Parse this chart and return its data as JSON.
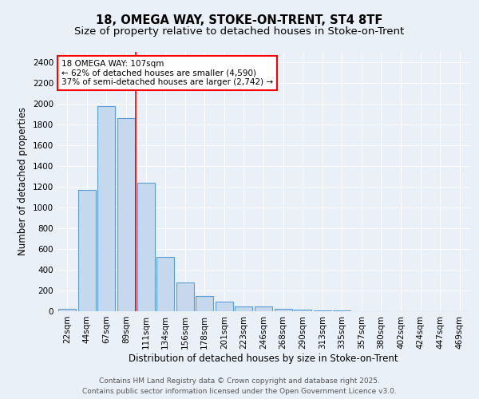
{
  "title_line1": "18, OMEGA WAY, STOKE-ON-TRENT, ST4 8TF",
  "title_line2": "Size of property relative to detached houses in Stoke-on-Trent",
  "xlabel": "Distribution of detached houses by size in Stoke-on-Trent",
  "ylabel": "Number of detached properties",
  "categories": [
    "22sqm",
    "44sqm",
    "67sqm",
    "89sqm",
    "111sqm",
    "134sqm",
    "156sqm",
    "178sqm",
    "201sqm",
    "223sqm",
    "246sqm",
    "268sqm",
    "290sqm",
    "313sqm",
    "335sqm",
    "357sqm",
    "380sqm",
    "402sqm",
    "424sqm",
    "447sqm",
    "469sqm"
  ],
  "values": [
    25,
    1170,
    1980,
    1860,
    1240,
    520,
    275,
    150,
    90,
    45,
    45,
    20,
    15,
    8,
    5,
    3,
    2,
    2,
    1,
    1,
    1
  ],
  "bar_color": "#c5d8ed",
  "bar_edge_color": "#5a9fd4",
  "bar_edge_width": 0.8,
  "annotation_line1": "18 OMEGA WAY: 107sqm",
  "annotation_line2": "← 62% of detached houses are smaller (4,590)",
  "annotation_line3": "37% of semi-detached houses are larger (2,742) →",
  "redline_index": 3.5,
  "ylim": [
    0,
    2500
  ],
  "yticks": [
    0,
    200,
    400,
    600,
    800,
    1000,
    1200,
    1400,
    1600,
    1800,
    2000,
    2200,
    2400
  ],
  "background_color": "#eaf0f8",
  "grid_color": "#ffffff",
  "footer_line1": "Contains HM Land Registry data © Crown copyright and database right 2025.",
  "footer_line2": "Contains public sector information licensed under the Open Government Licence v3.0.",
  "title_fontsize": 10.5,
  "subtitle_fontsize": 9.5,
  "axis_label_fontsize": 8.5,
  "tick_fontsize": 7.5,
  "annotation_fontsize": 7.5,
  "footer_fontsize": 6.5
}
